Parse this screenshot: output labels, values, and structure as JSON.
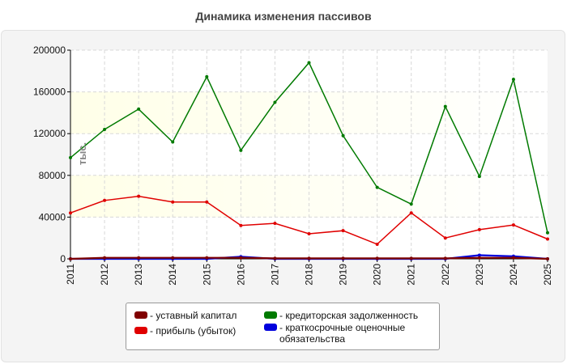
{
  "chart_data": {
    "type": "line",
    "title": "Динамика изменения пассивов",
    "ylabel": "тыс.",
    "xlabel": "",
    "x": [
      "2011",
      "2012",
      "2013",
      "2014",
      "2015",
      "2016",
      "2017",
      "2018",
      "2019",
      "2020",
      "2021",
      "2022",
      "2023",
      "2024",
      "2025"
    ],
    "ylim": [
      0,
      200000
    ],
    "yticks": [
      "0",
      "40000",
      "80000",
      "120000",
      "160000",
      "200000"
    ],
    "grid": true,
    "legend_position": "bottom",
    "series": [
      {
        "name": "- уставный капитал",
        "color": "#800000",
        "values": [
          0,
          1000,
          1000,
          1000,
          1000,
          1000,
          500,
          500,
          500,
          500,
          500,
          500,
          1000,
          1000,
          0
        ]
      },
      {
        "name": "- прибыль (убыток)",
        "color": "#e00000",
        "values": [
          44000,
          56000,
          60000,
          54500,
          54500,
          32000,
          34000,
          24000,
          27000,
          14000,
          44000,
          20000,
          28000,
          32500,
          19000
        ]
      },
      {
        "name": "- кредиторская задолженность",
        "color": "#007a00",
        "values": [
          97000,
          124000,
          143500,
          112000,
          174500,
          104000,
          150000,
          188000,
          118000,
          68500,
          52500,
          146000,
          79000,
          172000,
          25000
        ]
      },
      {
        "name": "- краткосрочные оценочные обязательства",
        "color": "#0000dd",
        "values": [
          0,
          0,
          0,
          0,
          0,
          2000,
          0,
          0,
          0,
          0,
          0,
          0,
          3500,
          2500,
          0
        ]
      }
    ]
  }
}
